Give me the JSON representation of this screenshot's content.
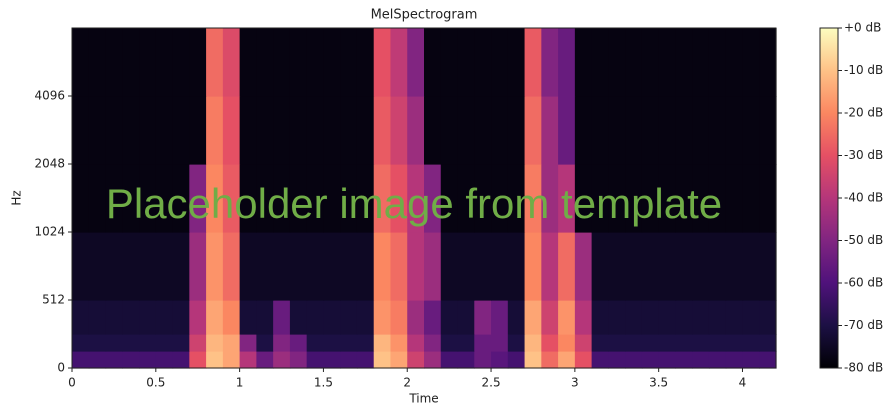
{
  "chart_data": {
    "type": "heatmap",
    "title": "MelSpectrogram",
    "x_label": "Time",
    "y_label": "Hz",
    "overlay_text": "Placeholder image from template",
    "xlim": [
      0,
      4.2
    ],
    "xticks": [
      0,
      0.5,
      1,
      1.5,
      2,
      2.5,
      3,
      3.5,
      4
    ],
    "ylim": [
      0,
      8192
    ],
    "yticks": [
      0,
      512,
      1024,
      2048,
      4096
    ],
    "y_scale": "symlog",
    "y_linthresh": 512,
    "colormap": "magma",
    "clim": [
      -80,
      0
    ],
    "colorbar_ticks": [
      {
        "value": 0,
        "label": "+0 dB"
      },
      {
        "value": -10,
        "label": "-10 dB"
      },
      {
        "value": -20,
        "label": "-20 dB"
      },
      {
        "value": -30,
        "label": "-30 dB"
      },
      {
        "value": -40,
        "label": "-40 dB"
      },
      {
        "value": -50,
        "label": "-50 dB"
      },
      {
        "value": -60,
        "label": "-60 dB"
      },
      {
        "value": -70,
        "label": "-70 dB"
      },
      {
        "value": -80,
        "label": "-80 dB"
      }
    ],
    "x_bins": [
      0,
      0.1,
      0.2,
      0.3,
      0.4,
      0.5,
      0.6,
      0.7,
      0.8,
      0.9,
      1,
      1.1,
      1.2,
      1.3,
      1.4,
      1.5,
      1.6,
      1.7,
      1.8,
      1.9,
      2,
      2.1,
      2.2,
      2.3,
      2.4,
      2.5,
      2.6,
      2.7,
      2.8,
      2.9,
      3,
      3.1,
      3.2,
      3.3,
      3.4,
      3.5,
      3.6,
      3.7,
      3.8,
      3.9,
      4,
      4.1,
      4.2
    ],
    "y_bins": [
      0,
      128,
      256,
      512,
      1024,
      2048,
      4096,
      8192
    ],
    "z": [
      [
        -62,
        -62,
        -62,
        -62,
        -62,
        -62,
        -62,
        -30,
        -10,
        -15,
        -40,
        -55,
        -45,
        -50,
        -62,
        -62,
        -62,
        -62,
        -10,
        -15,
        -35,
        -45,
        -62,
        -62,
        -55,
        -58,
        -62,
        -10,
        -25,
        -15,
        -30,
        -62,
        -62,
        -62,
        -62,
        -62,
        -62,
        -62,
        -62,
        -62,
        -62,
        -62
      ],
      [
        -70,
        -70,
        -70,
        -70,
        -70,
        -70,
        -70,
        -35,
        -12,
        -15,
        -50,
        -70,
        -50,
        -55,
        -70,
        -70,
        -70,
        -70,
        -12,
        -18,
        -40,
        -50,
        -70,
        -70,
        -55,
        -55,
        -70,
        -12,
        -30,
        -20,
        -35,
        -70,
        -70,
        -70,
        -70,
        -70,
        -70,
        -70,
        -70,
        -70,
        -70,
        -70
      ],
      [
        -72,
        -72,
        -72,
        -72,
        -72,
        -72,
        -72,
        -40,
        -15,
        -20,
        -72,
        -72,
        -55,
        -72,
        -72,
        -72,
        -72,
        -72,
        -18,
        -22,
        -45,
        -55,
        -72,
        -72,
        -50,
        -55,
        -72,
        -15,
        -35,
        -18,
        -40,
        -72,
        -72,
        -72,
        -72,
        -72,
        -72,
        -72,
        -72,
        -72,
        -72,
        -72
      ],
      [
        -75,
        -75,
        -75,
        -75,
        -75,
        -75,
        -75,
        -45,
        -18,
        -25,
        -75,
        -75,
        -75,
        -75,
        -75,
        -75,
        -75,
        -75,
        -20,
        -25,
        -40,
        -45,
        -75,
        -75,
        -75,
        -75,
        -75,
        -20,
        -40,
        -25,
        -45,
        -75,
        -75,
        -75,
        -75,
        -75,
        -75,
        -75,
        -75,
        -75,
        -75,
        -75
      ],
      [
        -78,
        -78,
        -78,
        -78,
        -78,
        -78,
        -78,
        -50,
        -20,
        -28,
        -78,
        -78,
        -78,
        -78,
        -78,
        -78,
        -78,
        -78,
        -25,
        -30,
        -40,
        -50,
        -78,
        -78,
        -78,
        -78,
        -78,
        -22,
        -45,
        -40,
        -78,
        -78,
        -78,
        -78,
        -78,
        -78,
        -78,
        -78,
        -78,
        -78,
        -78,
        -78
      ],
      [
        -78,
        -78,
        -78,
        -78,
        -78,
        -78,
        -78,
        -78,
        -22,
        -30,
        -78,
        -78,
        -78,
        -78,
        -78,
        -78,
        -78,
        -78,
        -28,
        -35,
        -45,
        -78,
        -78,
        -78,
        -78,
        -78,
        -78,
        -25,
        -45,
        -55,
        -78,
        -78,
        -78,
        -78,
        -78,
        -78,
        -78,
        -78,
        -78,
        -78,
        -78,
        -78
      ],
      [
        -78,
        -78,
        -78,
        -78,
        -78,
        -78,
        -78,
        -78,
        -25,
        -32,
        -78,
        -78,
        -78,
        -78,
        -78,
        -78,
        -78,
        -78,
        -30,
        -38,
        -50,
        -78,
        -78,
        -78,
        -78,
        -78,
        -78,
        -28,
        -50,
        -55,
        -78,
        -78,
        -78,
        -78,
        -78,
        -78,
        -78,
        -78,
        -78,
        -78,
        -78,
        -78
      ]
    ]
  }
}
